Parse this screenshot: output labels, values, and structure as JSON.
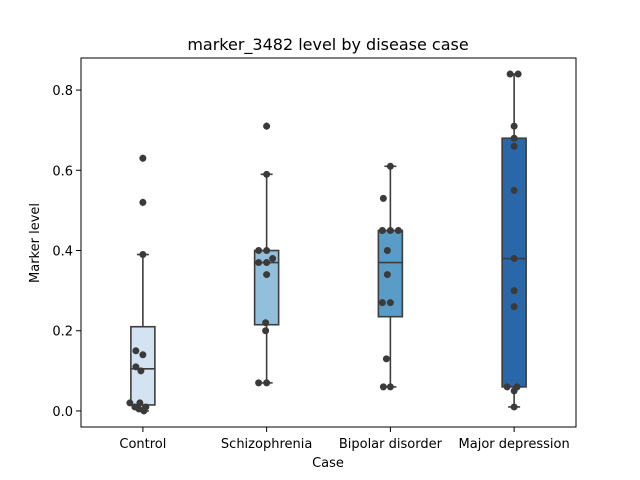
{
  "chart_data": {
    "type": "box",
    "title": "marker_3482 level by disease case",
    "xlabel": "Case",
    "ylabel": "Marker level",
    "ylim": [
      -0.04,
      0.88
    ],
    "yticks": [
      0.0,
      0.2,
      0.4,
      0.6,
      0.8
    ],
    "ytick_labels": [
      "0.0",
      "0.2",
      "0.4",
      "0.6",
      "0.8"
    ],
    "categories": [
      "Control",
      "Schizophrenia",
      "Bipolar disorder",
      "Major depression"
    ],
    "colors": [
      "#d4e3f2",
      "#92bfdb",
      "#5a9cc8",
      "#2a67a8"
    ],
    "boxes": [
      {
        "q1": 0.015,
        "median": 0.105,
        "q3": 0.21,
        "whisker_low": 0.0,
        "whisker_high": 0.39,
        "outliers": [
          0.52,
          0.63
        ]
      },
      {
        "q1": 0.215,
        "median": 0.37,
        "q3": 0.4,
        "whisker_low": 0.07,
        "whisker_high": 0.59,
        "outliers": [
          0.71
        ]
      },
      {
        "q1": 0.235,
        "median": 0.37,
        "q3": 0.45,
        "whisker_low": 0.06,
        "whisker_high": 0.61,
        "outliers": []
      },
      {
        "q1": 0.06,
        "median": 0.38,
        "q3": 0.68,
        "whisker_low": 0.01,
        "whisker_high": 0.84,
        "outliers": []
      }
    ],
    "points": [
      [
        0.63,
        0.52,
        0.39,
        0.15,
        0.14,
        0.11,
        0.1,
        0.02,
        0.02,
        0.01,
        0.01,
        0.005,
        0.0
      ],
      [
        0.71,
        0.59,
        0.4,
        0.4,
        0.38,
        0.37,
        0.37,
        0.34,
        0.22,
        0.2,
        0.07,
        0.07
      ],
      [
        0.61,
        0.53,
        0.45,
        0.45,
        0.45,
        0.4,
        0.34,
        0.27,
        0.27,
        0.13,
        0.06,
        0.06
      ],
      [
        0.84,
        0.84,
        0.71,
        0.68,
        0.66,
        0.55,
        0.38,
        0.3,
        0.26,
        0.06,
        0.06,
        0.05,
        0.01
      ]
    ],
    "point_jitter": [
      [
        0,
        0,
        0,
        -7,
        0,
        -7,
        -2,
        -13,
        -3,
        -8,
        3,
        -4,
        1
      ],
      [
        0,
        0,
        -8,
        0,
        6,
        -8,
        0,
        0,
        -1,
        -1,
        -8,
        0
      ],
      [
        0,
        -7,
        -8,
        0,
        8,
        -3,
        -3,
        -8,
        0,
        -4,
        -7,
        0
      ],
      [
        -4,
        4,
        0,
        0,
        0,
        0,
        0,
        0,
        0,
        -7,
        3,
        0,
        0
      ]
    ]
  }
}
